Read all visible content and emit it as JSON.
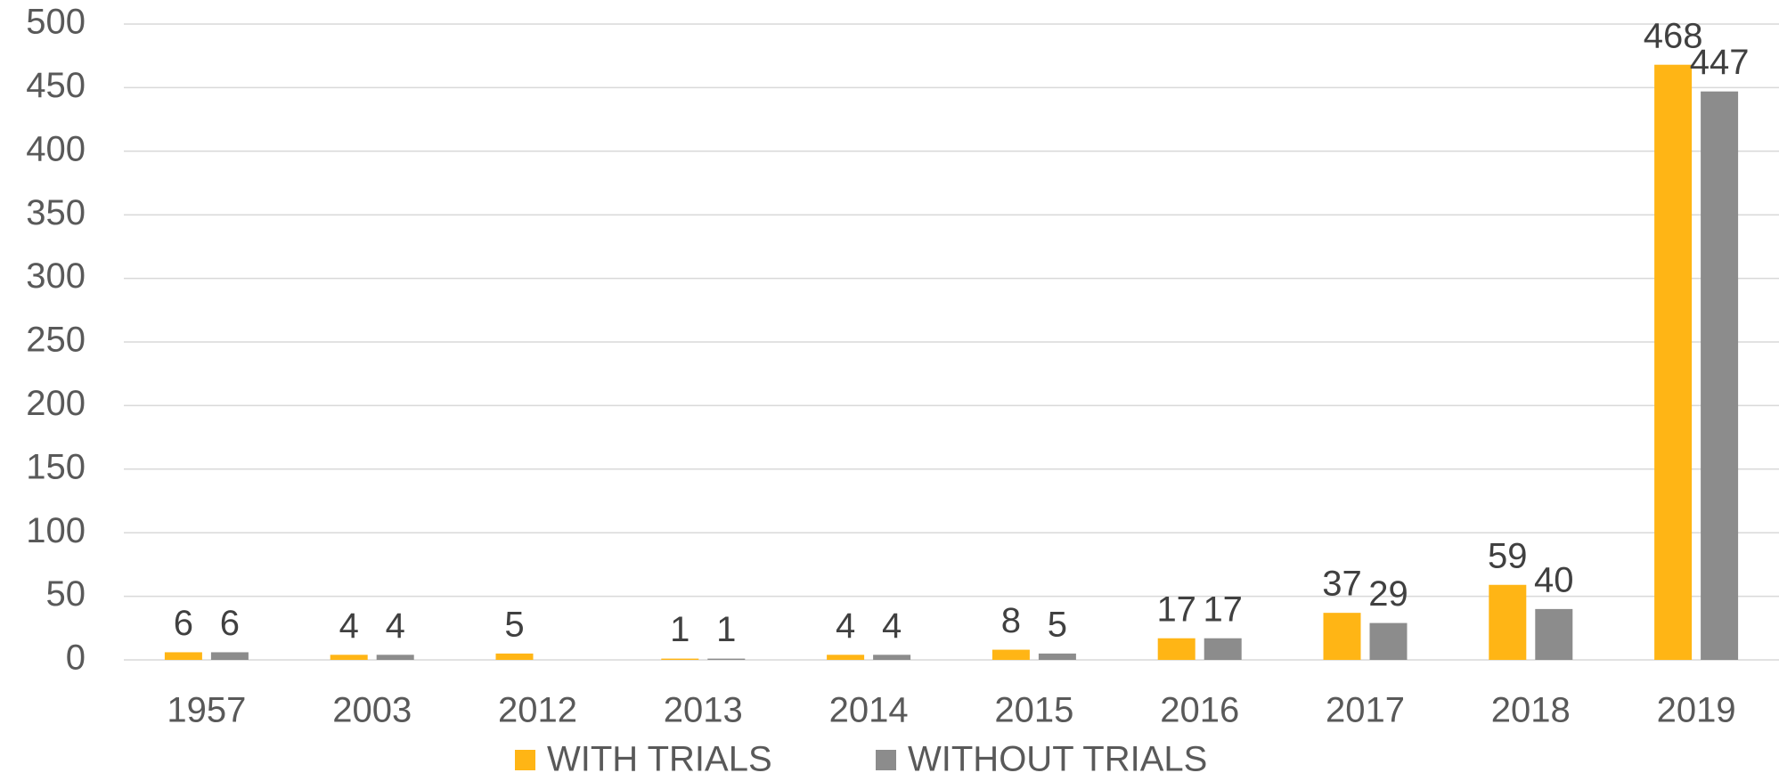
{
  "chart_data": {
    "type": "bar",
    "categories": [
      "1957",
      "2003",
      "2012",
      "2013",
      "2014",
      "2015",
      "2016",
      "2017",
      "2018",
      "2019"
    ],
    "series": [
      {
        "name": "WITH TRIALS",
        "color": "#FFB515",
        "values": [
          6,
          4,
          5,
          1,
          4,
          8,
          17,
          37,
          59,
          468
        ]
      },
      {
        "name": "WITHOUT TRIALS",
        "color": "#8C8C8C",
        "values": [
          6,
          4,
          null,
          1,
          4,
          5,
          17,
          29,
          40,
          447
        ]
      }
    ],
    "ylim": [
      0,
      500
    ],
    "yticks": [
      0,
      50,
      100,
      150,
      200,
      250,
      300,
      350,
      400,
      450,
      500
    ],
    "grid": true,
    "legend": "bottom"
  }
}
